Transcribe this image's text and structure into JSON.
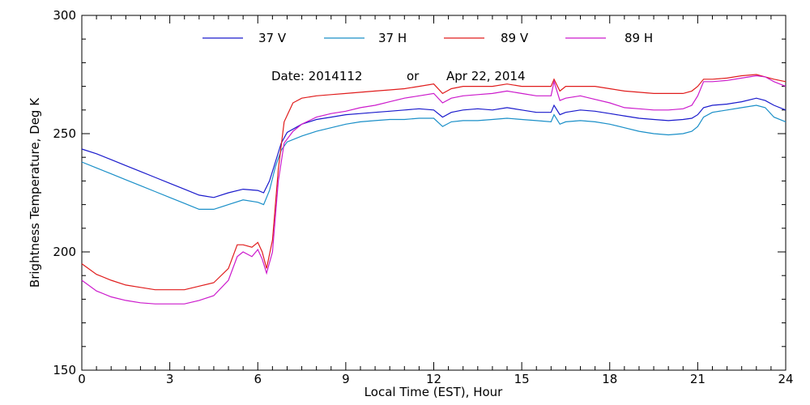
{
  "chart_data": {
    "type": "line",
    "title": "",
    "xlabel": "Local Time (EST), Hour",
    "ylabel": "Brightness Temperature, Deg K",
    "xlim": [
      0,
      24
    ],
    "ylim": [
      150,
      300
    ],
    "x_major_ticks": [
      0,
      3,
      6,
      9,
      12,
      15,
      18,
      21,
      24
    ],
    "x_tick_labels": [
      "0",
      "3",
      "6",
      "9",
      "12",
      "15",
      "18",
      "21",
      "24"
    ],
    "y_major_ticks": [
      150,
      200,
      250,
      300
    ],
    "y_tick_labels": [
      "150",
      "200",
      "250",
      "300"
    ],
    "grid": false,
    "legend_position": "top",
    "annotation": {
      "date_label": "Date: 2014112",
      "or_label": "or",
      "date_text": "Apr 22, 2014"
    },
    "series": [
      {
        "name": "37 V",
        "color": "#1a1acc",
        "x": [
          0,
          0.5,
          1,
          1.5,
          2,
          2.5,
          3,
          3.5,
          4,
          4.5,
          5,
          5.5,
          6,
          6.2,
          6.4,
          6.6,
          6.8,
          7,
          7.5,
          8,
          8.5,
          9,
          9.5,
          10,
          10.5,
          11,
          11.5,
          12,
          12.3,
          12.6,
          13,
          13.5,
          14,
          14.5,
          15,
          15.5,
          16,
          16.1,
          16.3,
          16.5,
          17,
          17.5,
          18,
          18.5,
          19,
          19.5,
          20,
          20.5,
          20.8,
          21,
          21.2,
          21.5,
          22,
          22.5,
          23,
          23.3,
          23.6,
          24
        ],
        "y": [
          243.5,
          241.5,
          239,
          236.5,
          234,
          231.5,
          229,
          226.5,
          224,
          223,
          225,
          226.5,
          226,
          225,
          230,
          238,
          246,
          250.5,
          254,
          256,
          257,
          258,
          258.5,
          259,
          259.5,
          260,
          260.5,
          260,
          257,
          259,
          260,
          260.5,
          260,
          261,
          260,
          259,
          259,
          262,
          258,
          259,
          260,
          259.5,
          258.5,
          257.5,
          256.5,
          256,
          255.5,
          256,
          256.5,
          258,
          261,
          262,
          262.5,
          263.5,
          265,
          264,
          262,
          260
        ]
      },
      {
        "name": "37 H",
        "color": "#1a8fc8",
        "x": [
          0,
          0.5,
          1,
          1.5,
          2,
          2.5,
          3,
          3.5,
          4,
          4.5,
          5,
          5.5,
          6,
          6.2,
          6.4,
          6.6,
          6.8,
          7,
          7.5,
          8,
          8.5,
          9,
          9.5,
          10,
          10.5,
          11,
          11.5,
          12,
          12.3,
          12.6,
          13,
          13.5,
          14,
          14.5,
          15,
          15.5,
          16,
          16.1,
          16.3,
          16.5,
          17,
          17.5,
          18,
          18.5,
          19,
          19.5,
          20,
          20.5,
          20.8,
          21,
          21.2,
          21.5,
          22,
          22.5,
          23,
          23.3,
          23.6,
          24
        ],
        "y": [
          238,
          235.5,
          233,
          230.5,
          228,
          225.5,
          223,
          220.5,
          218,
          218,
          220,
          222,
          221,
          220,
          226,
          236,
          243,
          246.5,
          249,
          251,
          252.5,
          254,
          255,
          255.5,
          256,
          256,
          256.5,
          256.5,
          253,
          255,
          255.5,
          255.5,
          256,
          256.5,
          256,
          255.5,
          255,
          258,
          254,
          255,
          255.5,
          255,
          254,
          252.5,
          251,
          250,
          249.5,
          250,
          251,
          253,
          257,
          259,
          260,
          261,
          262,
          261,
          257,
          255
        ]
      },
      {
        "name": "89 V",
        "color": "#e01c1c",
        "x": [
          0,
          0.5,
          1,
          1.5,
          2,
          2.5,
          3,
          3.5,
          4,
          4.5,
          5,
          5.3,
          5.5,
          5.8,
          6,
          6.15,
          6.3,
          6.5,
          6.7,
          6.9,
          7.2,
          7.5,
          8,
          8.5,
          9,
          9.5,
          10,
          10.5,
          11,
          11.5,
          12,
          12.3,
          12.6,
          13,
          13.5,
          14,
          14.5,
          15,
          15.5,
          16,
          16.1,
          16.3,
          16.5,
          17,
          17.5,
          18,
          18.5,
          19,
          19.5,
          20,
          20.5,
          20.8,
          21,
          21.2,
          21.5,
          22,
          22.5,
          23,
          23.3,
          23.6,
          24
        ],
        "y": [
          195,
          190.5,
          188,
          186,
          185,
          184,
          184,
          184,
          185.5,
          187,
          193,
          203,
          203,
          202,
          204,
          200,
          193,
          205,
          235,
          255,
          263,
          265,
          266,
          266.5,
          267,
          267.5,
          268,
          268.5,
          269,
          270,
          271,
          267,
          269,
          270,
          270,
          270,
          271,
          270,
          270,
          270,
          273,
          268,
          270,
          270,
          270,
          269,
          268,
          267.5,
          267,
          267,
          267,
          268,
          270,
          273,
          273,
          273.5,
          274.5,
          275,
          274,
          273,
          272
        ]
      },
      {
        "name": "89 H",
        "color": "#cc1acc",
        "x": [
          0,
          0.5,
          1,
          1.5,
          2,
          2.5,
          3,
          3.5,
          4,
          4.5,
          5,
          5.3,
          5.5,
          5.8,
          6,
          6.15,
          6.3,
          6.5,
          6.7,
          6.9,
          7.2,
          7.5,
          8,
          8.5,
          9,
          9.5,
          10,
          10.5,
          11,
          11.5,
          12,
          12.3,
          12.6,
          13,
          13.5,
          14,
          14.5,
          15,
          15.5,
          16,
          16.1,
          16.3,
          16.5,
          17,
          17.5,
          18,
          18.5,
          19,
          19.5,
          20,
          20.5,
          20.8,
          21,
          21.2,
          21.5,
          22,
          22.5,
          23,
          23.3,
          23.6,
          24
        ],
        "y": [
          188,
          183.5,
          181,
          179.5,
          178.5,
          178,
          178,
          178,
          179.5,
          181.5,
          188,
          198,
          200,
          198,
          201,
          197,
          191,
          200,
          230,
          246,
          251,
          254,
          257,
          258.5,
          259.5,
          261,
          262,
          263.5,
          265,
          266,
          267,
          263,
          265,
          266,
          266.5,
          267,
          268,
          267,
          266,
          266,
          272,
          264,
          265,
          266,
          264.5,
          263,
          261,
          260.5,
          260,
          260,
          260.5,
          262,
          266,
          272,
          272,
          272.5,
          273.5,
          274.5,
          274,
          272,
          270
        ]
      }
    ]
  }
}
